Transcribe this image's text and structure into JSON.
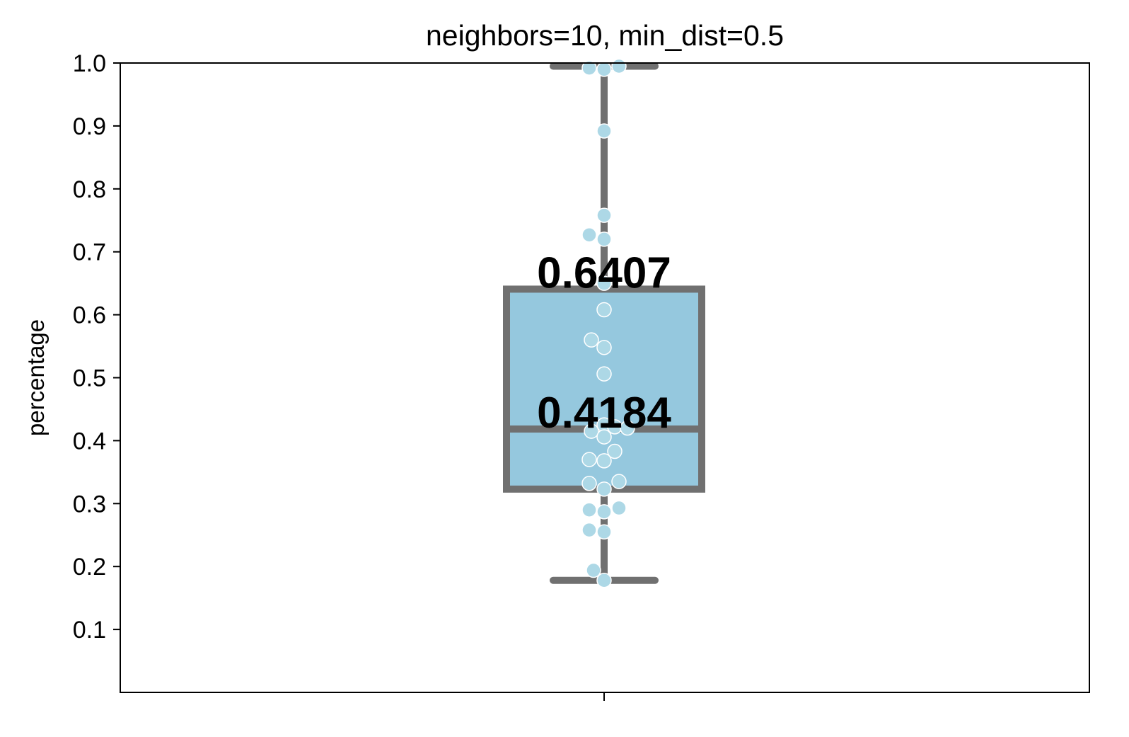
{
  "chart_data": {
    "type": "box",
    "title": "neighbors=10, min_dist=0.5",
    "xlabel": "",
    "ylabel": "percentage",
    "ylim": [
      0.0,
      1.0
    ],
    "yticks": [
      "0.1",
      "0.2",
      "0.3",
      "0.4",
      "0.5",
      "0.6",
      "0.7",
      "0.8",
      "0.9",
      "1.0"
    ],
    "xticks": [
      ""
    ],
    "grid": false,
    "box": {
      "whisker_low": 0.178,
      "q1": 0.323,
      "median": 0.4184,
      "q3": 0.6407,
      "whisker_high": 0.995
    },
    "annotations": [
      "0.6407",
      "0.4184"
    ],
    "points": [
      {
        "x": -0.07,
        "y": 0.992
      },
      {
        "x": 0.0,
        "y": 0.99
      },
      {
        "x": 0.07,
        "y": 0.995
      },
      {
        "x": 0.0,
        "y": 0.892
      },
      {
        "x": 0.0,
        "y": 0.758
      },
      {
        "x": -0.07,
        "y": 0.727
      },
      {
        "x": 0.0,
        "y": 0.72
      },
      {
        "x": 0.0,
        "y": 0.65
      },
      {
        "x": 0.0,
        "y": 0.608
      },
      {
        "x": -0.06,
        "y": 0.56
      },
      {
        "x": 0.0,
        "y": 0.548
      },
      {
        "x": 0.0,
        "y": 0.506
      },
      {
        "x": 0.0,
        "y": 0.425
      },
      {
        "x": 0.05,
        "y": 0.422
      },
      {
        "x": 0.11,
        "y": 0.42
      },
      {
        "x": -0.06,
        "y": 0.415
      },
      {
        "x": 0.0,
        "y": 0.406
      },
      {
        "x": 0.05,
        "y": 0.383
      },
      {
        "x": -0.07,
        "y": 0.37
      },
      {
        "x": 0.0,
        "y": 0.368
      },
      {
        "x": 0.07,
        "y": 0.335
      },
      {
        "x": -0.07,
        "y": 0.332
      },
      {
        "x": 0.0,
        "y": 0.323
      },
      {
        "x": 0.07,
        "y": 0.293
      },
      {
        "x": -0.07,
        "y": 0.29
      },
      {
        "x": 0.0,
        "y": 0.287
      },
      {
        "x": -0.07,
        "y": 0.258
      },
      {
        "x": 0.0,
        "y": 0.255
      },
      {
        "x": -0.05,
        "y": 0.194
      },
      {
        "x": 0.0,
        "y": 0.178
      }
    ],
    "colors": {
      "box_fill": "#95c8de",
      "box_edge": "#707070",
      "points": "#add8e6"
    }
  }
}
